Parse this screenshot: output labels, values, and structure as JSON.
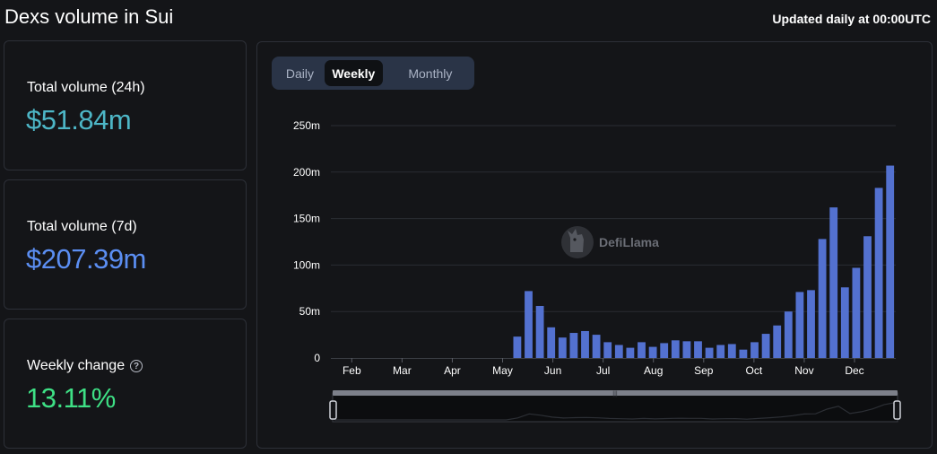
{
  "header": {
    "title": "Dexs volume in Sui",
    "updated_note": "Updated daily at 00:00UTC"
  },
  "stats": {
    "volume_24h": {
      "label": "Total volume (24h)",
      "value": "$51.84m",
      "color": "#4db6c6"
    },
    "volume_7d": {
      "label": "Total volume (7d)",
      "value": "$207.39m",
      "color": "#5b8ef2"
    },
    "weekly_change": {
      "label": "Weekly change",
      "value": "13.11%",
      "color": "#3ee085",
      "help_icon": "question-circle-icon"
    }
  },
  "tabs": [
    {
      "label": "Daily",
      "active": false
    },
    {
      "label": "Weekly",
      "active": true
    },
    {
      "label": "Monthly",
      "active": false
    }
  ],
  "watermark": {
    "text": "DefiLlama",
    "icon": "llama-logo-icon"
  },
  "colors": {
    "bar": "#5371d0",
    "grid": "#2a2d33",
    "text": "#ffffff"
  },
  "chart_data": {
    "type": "bar",
    "y_tick_labels": [
      "0",
      "50m",
      "100m",
      "150m",
      "200m",
      "250m"
    ],
    "ylim": [
      0,
      250000000
    ],
    "x_tick_labels": [
      "Feb",
      "Mar",
      "Apr",
      "May",
      "Jun",
      "Jul",
      "Aug",
      "Sep",
      "Oct",
      "Nov",
      "Dec"
    ],
    "grid": "horizontal",
    "series": [
      {
        "values": [
          0,
          0,
          0,
          0,
          0,
          0,
          0,
          0,
          0,
          0,
          0,
          0,
          0,
          0,
          0,
          0,
          23000000,
          72000000,
          56000000,
          33000000,
          22000000,
          27000000,
          29000000,
          25000000,
          17000000,
          14000000,
          11000000,
          17000000,
          12000000,
          16000000,
          19000000,
          18000000,
          18000000,
          11000000,
          14000000,
          15000000,
          9000000,
          17000000,
          26000000,
          35000000,
          50000000,
          71000000,
          73000000,
          128000000,
          162000000,
          76000000,
          97000000,
          131000000,
          183000000,
          207000000
        ]
      }
    ]
  }
}
